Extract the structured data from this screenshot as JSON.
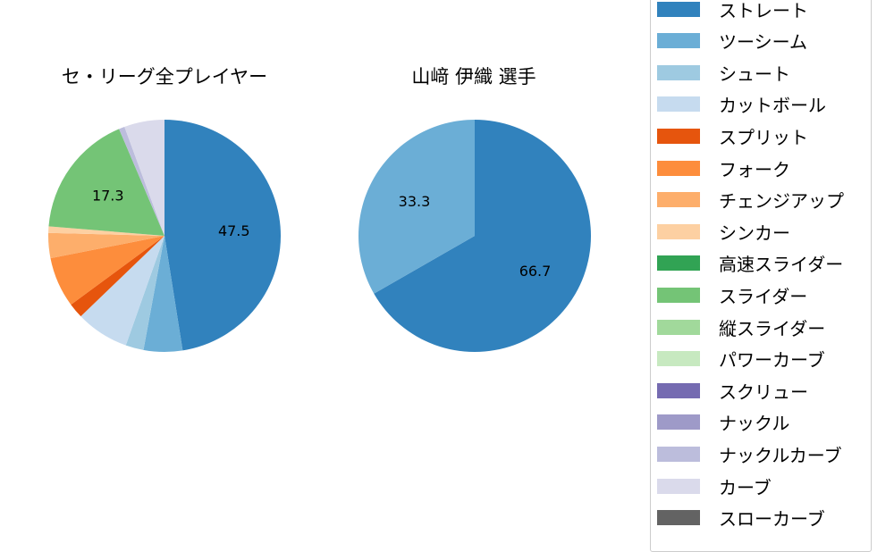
{
  "chart_data": [
    {
      "type": "pie",
      "title": "セ・リーグ全プレイヤー",
      "categories": [
        "ストレート",
        "ツーシーム",
        "シュート",
        "カットボール",
        "スプリット",
        "フォーク",
        "チェンジアップ",
        "シンカー",
        "スライダー",
        "ナックルカーブ",
        "カーブ"
      ],
      "values": [
        47.5,
        5.4,
        2.5,
        7.4,
        2.1,
        7.0,
        3.5,
        0.9,
        17.3,
        0.8,
        5.6
      ],
      "colors": [
        "#3182bd",
        "#6baed6",
        "#9ecae1",
        "#c6dbef",
        "#e6550d",
        "#fd8d3c",
        "#fdae6b",
        "#fdd0a2",
        "#74c476",
        "#bcbddc",
        "#dadaeb"
      ],
      "labels_shown": {
        "ストレート": "47.5",
        "スライダー": "17.3"
      },
      "start_angle": 90,
      "direction": "clockwise"
    },
    {
      "type": "pie",
      "title": "山﨑 伊織  選手",
      "categories": [
        "ストレート",
        "ツーシーム"
      ],
      "values": [
        66.7,
        33.3
      ],
      "colors": [
        "#3182bd",
        "#6baed6"
      ],
      "labels_shown": {
        "ストレート": "66.7",
        "ツーシーム": "33.3"
      },
      "start_angle": 90,
      "direction": "clockwise"
    }
  ],
  "titles": {
    "left": "セ・リーグ全プレイヤー",
    "right": "山﨑 伊織  選手"
  },
  "legend": [
    {
      "label": "ストレート",
      "color": "#3182bd"
    },
    {
      "label": "ツーシーム",
      "color": "#6baed6"
    },
    {
      "label": "シュート",
      "color": "#9ecae1"
    },
    {
      "label": "カットボール",
      "color": "#c6dbef"
    },
    {
      "label": "スプリット",
      "color": "#e6550d"
    },
    {
      "label": "フォーク",
      "color": "#fd8d3c"
    },
    {
      "label": "チェンジアップ",
      "color": "#fdae6b"
    },
    {
      "label": "シンカー",
      "color": "#fdd0a2"
    },
    {
      "label": "高速スライダー",
      "color": "#31a354"
    },
    {
      "label": "スライダー",
      "color": "#74c476"
    },
    {
      "label": "縦スライダー",
      "color": "#a1d99b"
    },
    {
      "label": "パワーカーブ",
      "color": "#c7e9c0"
    },
    {
      "label": "スクリュー",
      "color": "#756bb1"
    },
    {
      "label": "ナックル",
      "color": "#9e9ac8"
    },
    {
      "label": "ナックルカーブ",
      "color": "#bcbddc"
    },
    {
      "label": "カーブ",
      "color": "#dadaeb"
    },
    {
      "label": "スローカーブ",
      "color": "#636363"
    }
  ]
}
